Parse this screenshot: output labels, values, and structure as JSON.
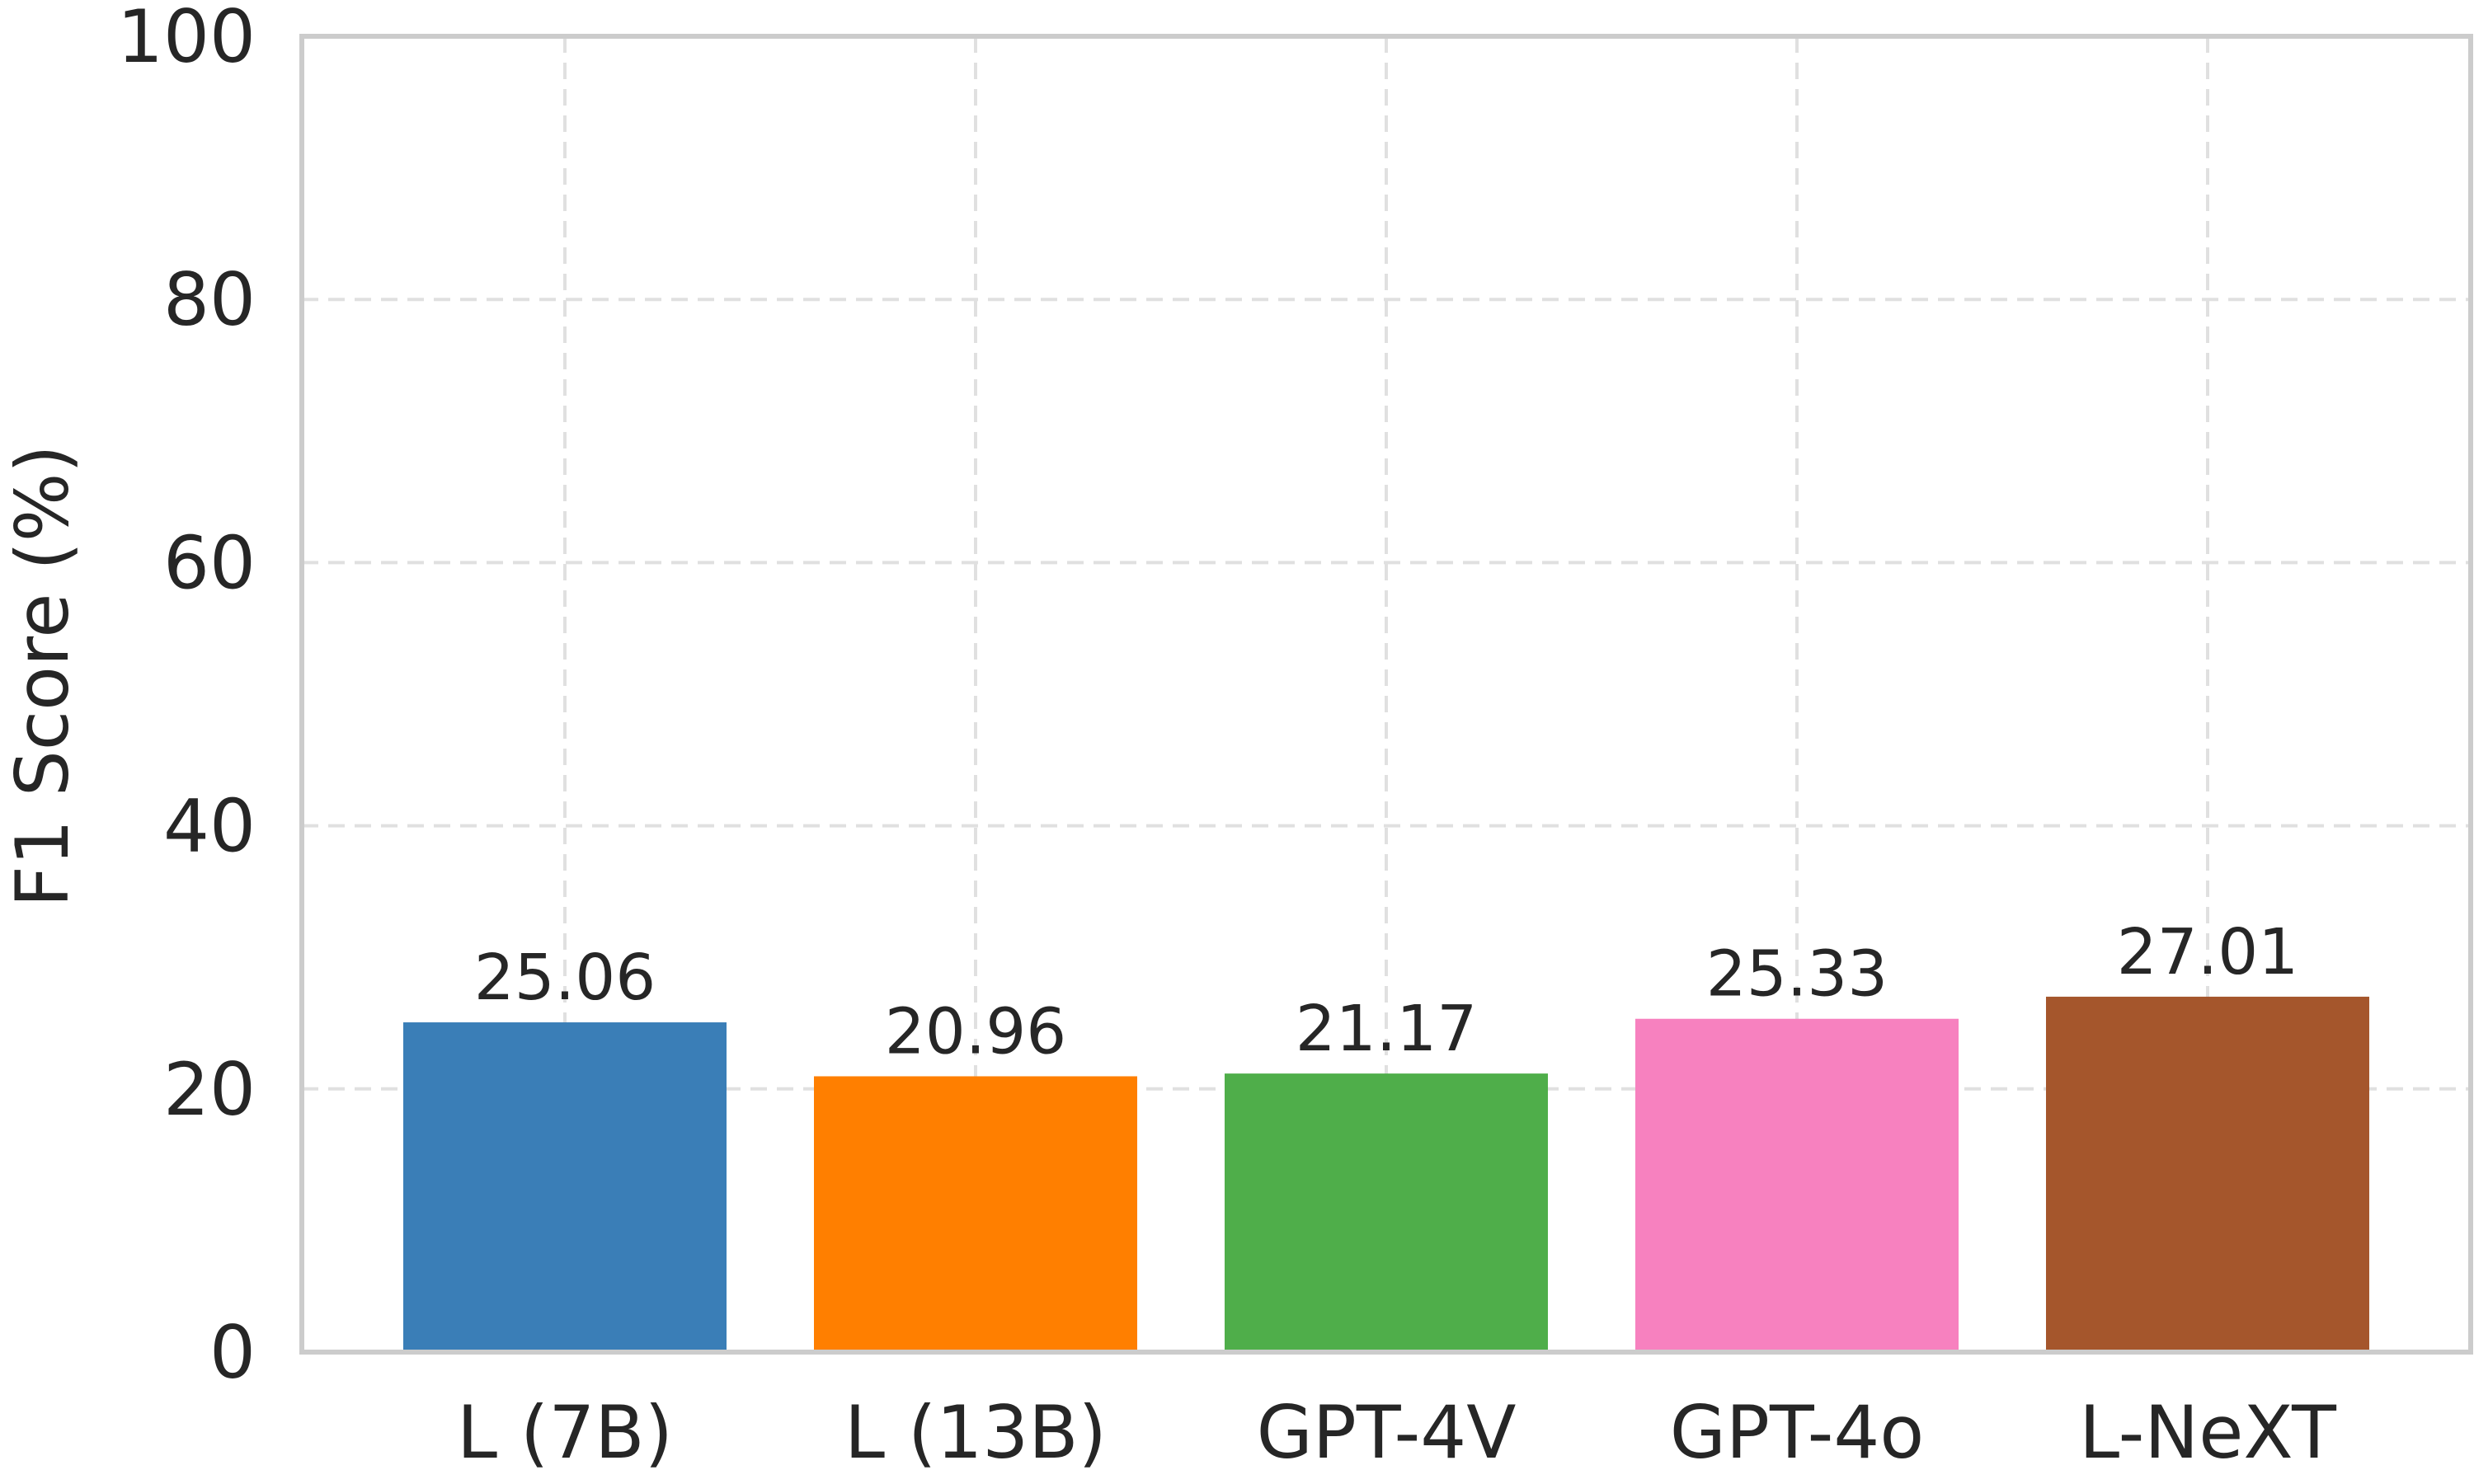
{
  "chart_data": {
    "type": "bar",
    "title": "",
    "xlabel": "",
    "ylabel": "F1 Score (%)",
    "ylim": [
      0,
      100
    ],
    "yticks": [
      0,
      20,
      40,
      60,
      80,
      100
    ],
    "grid": true,
    "categories": [
      "L (7B)",
      "L (13B)",
      "GPT-4V",
      "GPT-4o",
      "L-NeXT"
    ],
    "values": [
      25.06,
      20.96,
      21.17,
      25.33,
      27.01
    ],
    "value_labels": [
      "25.06",
      "20.96",
      "21.17",
      "25.33",
      "27.01"
    ],
    "colors": [
      "#3a7eb7",
      "#ff7f00",
      "#4fae4a",
      "#f781bf",
      "#a5562c"
    ]
  }
}
